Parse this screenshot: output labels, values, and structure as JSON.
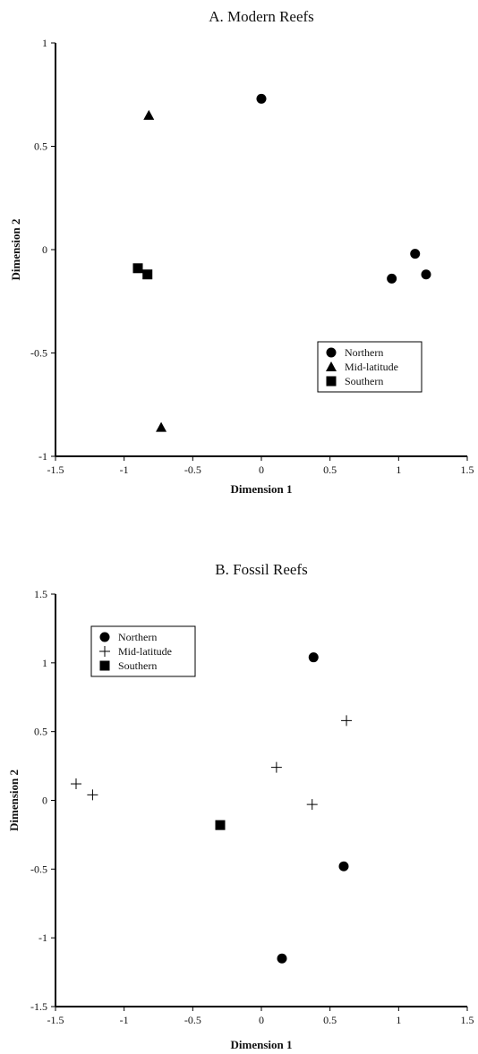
{
  "chart_data": [
    {
      "type": "scatter",
      "title": "A.  Modern Reefs",
      "xlabel": "Dimension 1",
      "ylabel": "Dimension 2",
      "xlim": [
        -1.5,
        1.5
      ],
      "ylim": [
        -1,
        1
      ],
      "xticks": [
        "-1.5",
        "-1",
        "-0.5",
        "0",
        "0.5",
        "1",
        "1.5"
      ],
      "yticks": [
        "-1",
        "-0.5",
        "0",
        "0.5",
        "1"
      ],
      "xtick_values": [
        -1.5,
        -1,
        -0.5,
        0,
        0.5,
        1,
        1.5
      ],
      "ytick_values": [
        -1,
        -0.5,
        0,
        0.5,
        1
      ],
      "legend_position": "lower-right",
      "series": [
        {
          "name": "Northern",
          "marker": "circle",
          "points": [
            [
              0.0,
              0.73
            ],
            [
              1.12,
              -0.02
            ],
            [
              0.95,
              -0.14
            ],
            [
              1.2,
              -0.12
            ]
          ]
        },
        {
          "name": "Mid-latitude",
          "marker": "triangle",
          "points": [
            [
              -0.82,
              0.65
            ],
            [
              -0.73,
              -0.86
            ]
          ]
        },
        {
          "name": "Southern",
          "marker": "square",
          "points": [
            [
              -0.9,
              -0.09
            ],
            [
              -0.83,
              -0.12
            ]
          ]
        }
      ]
    },
    {
      "type": "scatter",
      "title": "B.  Fossil Reefs",
      "xlabel": "Dimension 1",
      "ylabel": "Dimension 2",
      "xlim": [
        -1.5,
        1.5
      ],
      "ylim": [
        -1.5,
        1.5
      ],
      "xticks": [
        "-1.5",
        "-1",
        "-0.5",
        "0",
        "0.5",
        "1",
        "1.5"
      ],
      "yticks": [
        "-1.5",
        "-1",
        "-0.5",
        "0",
        "0.5",
        "1",
        "1.5"
      ],
      "xtick_values": [
        -1.5,
        -1,
        -0.5,
        0,
        0.5,
        1,
        1.5
      ],
      "ytick_values": [
        -1.5,
        -1,
        -0.5,
        0,
        0.5,
        1,
        1.5
      ],
      "legend_position": "top-left",
      "series": [
        {
          "name": "Northern",
          "marker": "circle",
          "points": [
            [
              0.38,
              1.04
            ],
            [
              0.6,
              -0.48
            ],
            [
              0.15,
              -1.15
            ]
          ]
        },
        {
          "name": "Mid-latitude",
          "marker": "plus",
          "points": [
            [
              -1.35,
              0.12
            ],
            [
              -1.23,
              0.04
            ],
            [
              0.11,
              0.24
            ],
            [
              0.62,
              0.58
            ],
            [
              0.37,
              -0.03
            ]
          ]
        },
        {
          "name": "Southern",
          "marker": "square",
          "points": [
            [
              -0.3,
              -0.18
            ]
          ]
        }
      ]
    }
  ]
}
